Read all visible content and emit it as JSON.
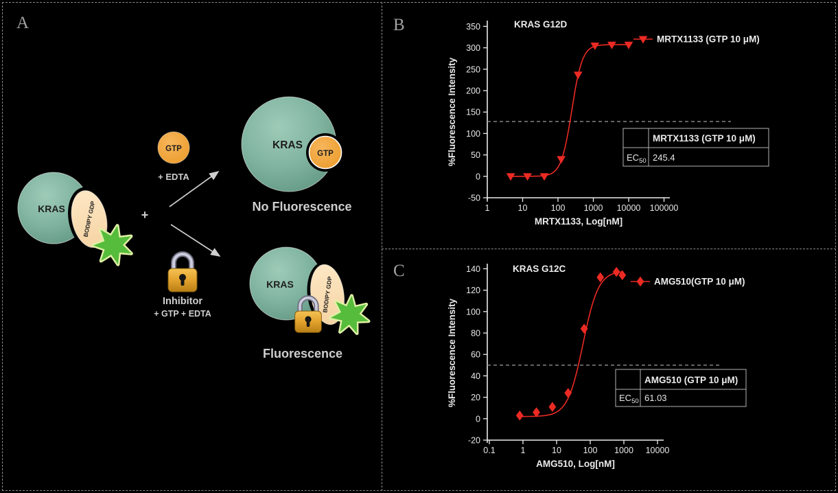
{
  "figure": {
    "background": "#000000",
    "panel_a": {
      "label": "A",
      "left_complex": {
        "protein": "KRAS",
        "probe": "BODIPY GDP"
      },
      "plus_sign": "+",
      "gtp_bubble": {
        "label": "GTP",
        "condition": "+ EDTA"
      },
      "inhibitor": {
        "label": "Inhibitor",
        "condition": "+ GTP + EDTA"
      },
      "no_fluorescence_branch": {
        "protein": "KRAS",
        "ligand": "GTP",
        "caption": "No Fluorescence"
      },
      "fluorescence_branch": {
        "protein": "KRAS",
        "probe": "BODIPY GDP",
        "caption": "Fluorescence"
      },
      "colors": {
        "kras_teal": "#7fb3a0",
        "probe_cream": "#fbdfb9",
        "gtp_orange": "#f2a844",
        "star_green": "#56bc3c",
        "lock_gold": "#d99a28"
      }
    }
  },
  "chart_data": [
    {
      "panel": "B",
      "type": "scatter",
      "title": "KRAS G12D",
      "xlabel": "MRTX1133, Log[nM]",
      "ylabel": "%Fluorescence Intensity",
      "x_scale": "log",
      "xlim": [
        1,
        100000
      ],
      "ylim": [
        -50,
        350
      ],
      "x_ticks": [
        "1",
        "10",
        "100",
        "1000",
        "10000",
        "100000"
      ],
      "x_tick_values": [
        1,
        10,
        100,
        1000,
        10000,
        100000
      ],
      "y_ticks": [
        -50,
        0,
        50,
        100,
        150,
        200,
        250,
        300,
        350
      ],
      "grid": false,
      "legend_position": "right-top",
      "series": [
        {
          "name": "MRTX1133 (GTP 10 μM)",
          "color": "#ec2a24",
          "marker": "triangle-down",
          "x": [
            4.6,
            13.7,
            41,
            123,
            370,
            1111,
            3333,
            10000
          ],
          "y": [
            0,
            0,
            0,
            40,
            237,
            305,
            307,
            307
          ]
        }
      ],
      "fit_curve": {
        "model": "4PL",
        "bottom": 0,
        "top": 307.5,
        "ec50": 245.4,
        "hill": 2.9
      },
      "half_max_dashed_y": 128,
      "table": {
        "header": "MRTX1133 (GTP 10 μM)",
        "row_label": "EC",
        "row_label_sub": "50",
        "value": "245.4"
      }
    },
    {
      "panel": "C",
      "type": "scatter",
      "title": "KRAS G12C",
      "xlabel": "AMG510, Log[nM]",
      "ylabel": "%Fluorescence Intensity",
      "x_scale": "log",
      "xlim": [
        0.1,
        10000
      ],
      "ylim": [
        -20,
        140
      ],
      "x_ticks": [
        "0.1",
        "1",
        "10",
        "100",
        "1000",
        "10000"
      ],
      "x_tick_values": [
        0.1,
        1,
        10,
        100,
        1000,
        10000
      ],
      "y_ticks": [
        -20,
        0,
        20,
        40,
        60,
        80,
        100,
        120,
        140
      ],
      "grid": false,
      "legend_position": "right-top",
      "series": [
        {
          "name": "AMG510(GTP 10 μM)",
          "color": "#ec2a24",
          "marker": "diamond",
          "x": [
            0.8,
            2.5,
            7.5,
            22,
            66,
            200,
            600,
            900
          ],
          "y": [
            3,
            6,
            11,
            24,
            84,
            132,
            137,
            134
          ]
        }
      ],
      "fit_curve": {
        "model": "4PL",
        "bottom": 2,
        "top": 138,
        "ec50": 61.03,
        "hill": 1.9
      },
      "half_max_dashed_y": 50,
      "table": {
        "header": "AMG510 (GTP 10 μM)",
        "row_label": "EC",
        "row_label_sub": "50",
        "value": "61.03"
      }
    }
  ]
}
